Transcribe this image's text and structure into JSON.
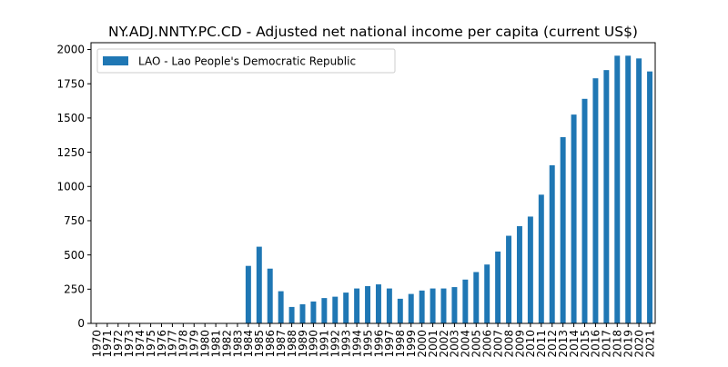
{
  "chart_data": {
    "type": "bar",
    "title": "NY.ADJ.NNTY.PC.CD - Adjusted net national income per capita (current US$)",
    "xlabel": "",
    "ylabel": "",
    "ylim": [
      0,
      2050
    ],
    "yticks": [
      0,
      250,
      500,
      750,
      1000,
      1250,
      1500,
      1750,
      2000
    ],
    "legend_position": "upper-left",
    "grid": false,
    "categories": [
      "1970",
      "1971",
      "1972",
      "1973",
      "1974",
      "1975",
      "1976",
      "1977",
      "1978",
      "1979",
      "1980",
      "1981",
      "1982",
      "1983",
      "1984",
      "1985",
      "1986",
      "1987",
      "1988",
      "1989",
      "1990",
      "1991",
      "1992",
      "1993",
      "1994",
      "1995",
      "1996",
      "1997",
      "1998",
      "1999",
      "2000",
      "2001",
      "2002",
      "2003",
      "2004",
      "2005",
      "2006",
      "2007",
      "2008",
      "2009",
      "2010",
      "2011",
      "2012",
      "2013",
      "2014",
      "2015",
      "2016",
      "2017",
      "2018",
      "2019",
      "2020",
      "2021"
    ],
    "series": [
      {
        "name": "LAO - Lao People's Democratic Republic",
        "color": "#1f77b4",
        "values": [
          null,
          null,
          null,
          null,
          null,
          null,
          null,
          null,
          null,
          null,
          null,
          null,
          null,
          null,
          420,
          560,
          400,
          235,
          120,
          140,
          160,
          185,
          195,
          225,
          255,
          272,
          285,
          255,
          180,
          215,
          240,
          255,
          255,
          265,
          320,
          375,
          430,
          525,
          640,
          710,
          780,
          940,
          1155,
          1360,
          1525,
          1640,
          1790,
          1850,
          1955,
          1955,
          1935,
          1840
        ]
      }
    ]
  }
}
